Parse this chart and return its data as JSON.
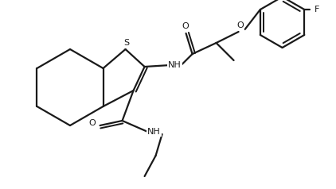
{
  "background_color": "#ffffff",
  "line_color": "#1a1a1a",
  "line_width": 1.6,
  "fig_width": 4.22,
  "fig_height": 2.38,
  "dpi": 100,
  "layout": {
    "xlim": [
      0,
      422
    ],
    "ylim": [
      0,
      238
    ]
  }
}
